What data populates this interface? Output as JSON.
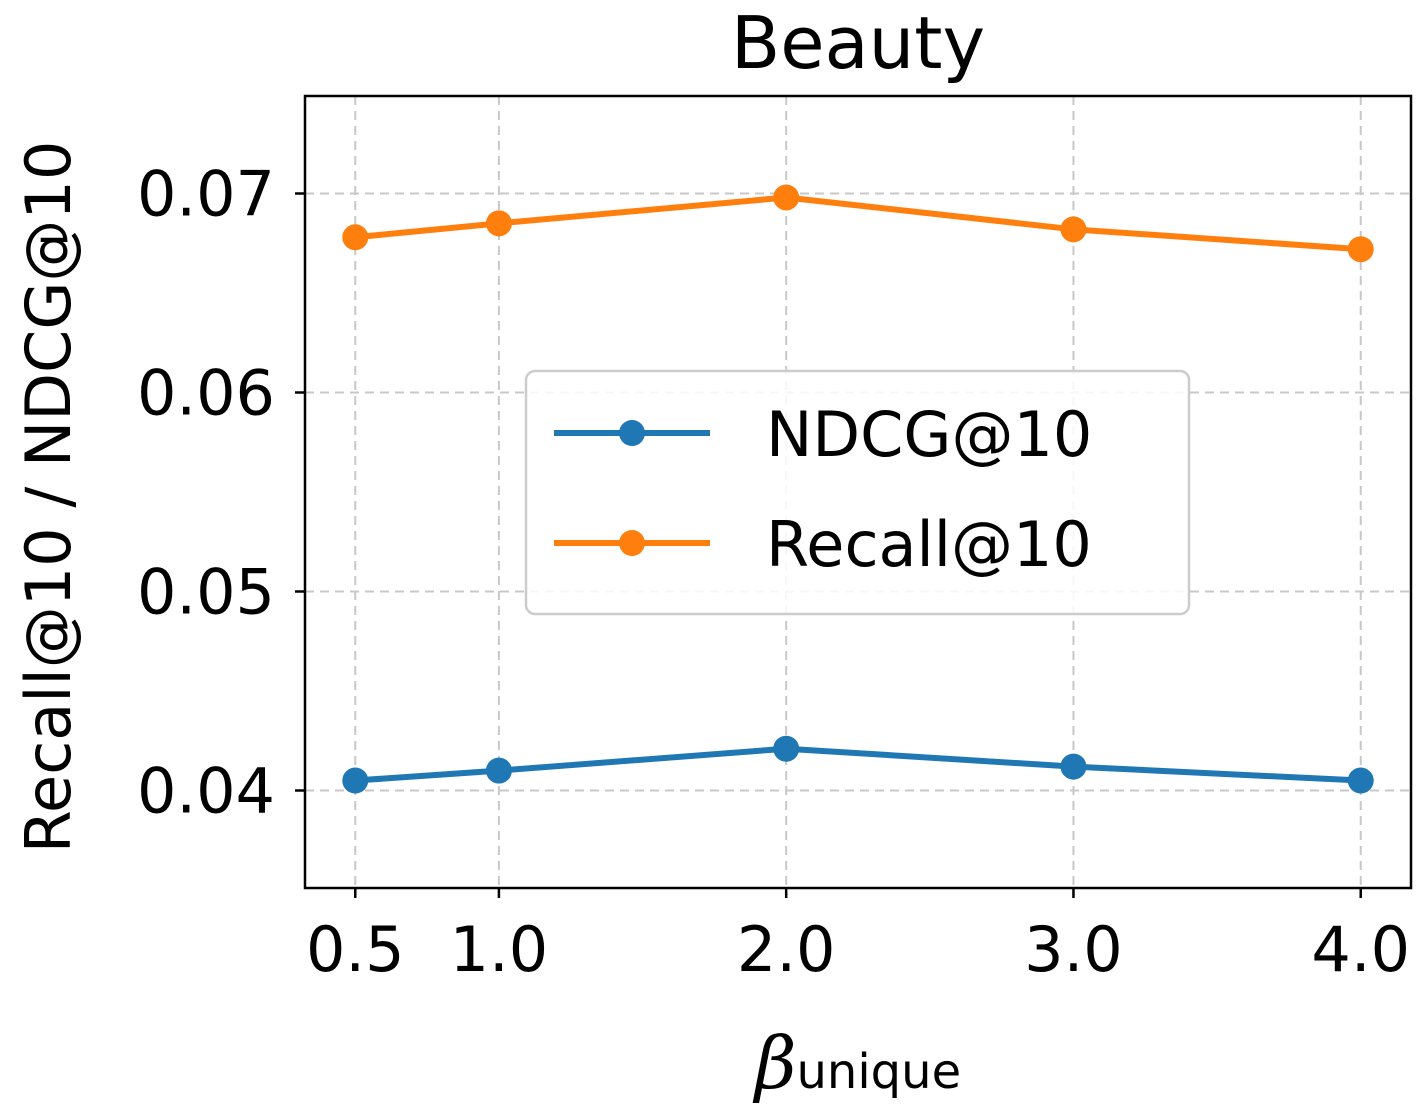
{
  "chart_data": {
    "type": "line",
    "title": "Beauty",
    "xlabel": "β",
    "xlabel_subscript": "unique",
    "ylabel": "Recall@10 / NDCG@10",
    "x": [
      0.5,
      1.0,
      2.0,
      3.0,
      4.0
    ],
    "x_tick_labels": [
      "0.5",
      "1.0",
      "2.0",
      "3.0",
      "4.0"
    ],
    "y_ticks": [
      0.04,
      0.05,
      0.06,
      0.07
    ],
    "y_tick_labels": [
      "0.04",
      "0.05",
      "0.06",
      "0.07"
    ],
    "xlim": [
      0.325,
      4.175
    ],
    "ylim": [
      0.0351,
      0.0749
    ],
    "grid": true,
    "legend_position": "center",
    "series": [
      {
        "name": "NDCG@10",
        "color": "#1f77b4",
        "values": [
          0.0405,
          0.041,
          0.0421,
          0.0412,
          0.0405
        ]
      },
      {
        "name": "Recall@10",
        "color": "#ff7f0e",
        "values": [
          0.0678,
          0.0685,
          0.0698,
          0.0682,
          0.0672
        ]
      }
    ]
  }
}
